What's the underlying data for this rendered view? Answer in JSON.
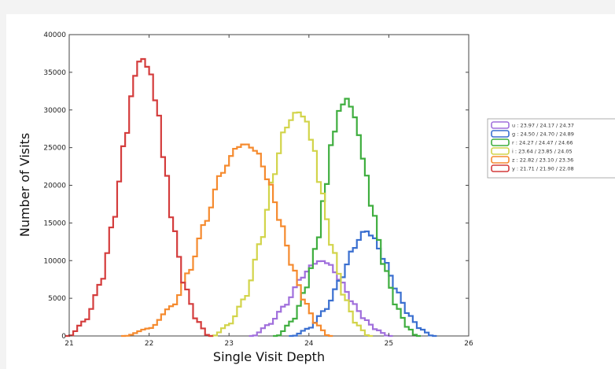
{
  "chart_data": {
    "type": "histogram",
    "xlabel": "Single Visit Depth",
    "ylabel": "Number of Visits",
    "xlim": [
      21,
      26
    ],
    "ylim": [
      0,
      40000
    ],
    "xticks": [
      "21",
      "22",
      "23",
      "24",
      "25",
      "26"
    ],
    "yticks": [
      "0",
      "5000",
      "10000",
      "15000",
      "20000",
      "25000",
      "30000",
      "35000",
      "40000"
    ],
    "grid": false,
    "legend_position": "right, outside plot",
    "series": [
      {
        "name": "u : 23.97 / 24.17 / 24.37",
        "color": "#a06fdc",
        "points": [
          [
            23.3,
            0
          ],
          [
            23.5,
            1500
          ],
          [
            23.7,
            4000
          ],
          [
            23.9,
            7600
          ],
          [
            24.05,
            9500
          ],
          [
            24.15,
            10000
          ],
          [
            24.25,
            9600
          ],
          [
            24.4,
            7300
          ],
          [
            24.55,
            4400
          ],
          [
            24.7,
            2200
          ],
          [
            24.85,
            800
          ],
          [
            25.0,
            0
          ]
        ]
      },
      {
        "name": "g : 24.50 / 24.70 / 24.89",
        "color": "#3a6fd0",
        "points": [
          [
            23.8,
            0
          ],
          [
            24.0,
            1000
          ],
          [
            24.2,
            3400
          ],
          [
            24.4,
            7500
          ],
          [
            24.55,
            11500
          ],
          [
            24.7,
            14000
          ],
          [
            24.8,
            13200
          ],
          [
            24.95,
            10000
          ],
          [
            25.1,
            6000
          ],
          [
            25.25,
            2800
          ],
          [
            25.4,
            900
          ],
          [
            25.55,
            0
          ]
        ]
      },
      {
        "name": "r : 24.27 / 24.47 / 24.66",
        "color": "#3fae3f",
        "points": [
          [
            23.6,
            0
          ],
          [
            23.8,
            2000
          ],
          [
            23.95,
            6000
          ],
          [
            24.1,
            12000
          ],
          [
            24.2,
            19000
          ],
          [
            24.3,
            26500
          ],
          [
            24.4,
            30500
          ],
          [
            24.48,
            31500
          ],
          [
            24.58,
            29000
          ],
          [
            24.68,
            23500
          ],
          [
            24.8,
            16500
          ],
          [
            24.95,
            9000
          ],
          [
            25.1,
            3800
          ],
          [
            25.25,
            1000
          ],
          [
            25.35,
            0
          ]
        ]
      },
      {
        "name": "i : 23.64 / 23.85 / 24.05",
        "color": "#d2d44a",
        "points": [
          [
            22.8,
            0
          ],
          [
            23.0,
            1500
          ],
          [
            23.2,
            5000
          ],
          [
            23.4,
            12500
          ],
          [
            23.55,
            21000
          ],
          [
            23.7,
            27500
          ],
          [
            23.85,
            29800
          ],
          [
            23.95,
            29000
          ],
          [
            24.05,
            25500
          ],
          [
            24.15,
            19500
          ],
          [
            24.3,
            11500
          ],
          [
            24.45,
            5000
          ],
          [
            24.6,
            1500
          ],
          [
            24.75,
            0
          ]
        ]
      },
      {
        "name": "z : 22.82 / 23.10 / 23.36",
        "color": "#f58a2e",
        "points": [
          [
            21.7,
            0
          ],
          [
            22.0,
            1000
          ],
          [
            22.3,
            4000
          ],
          [
            22.5,
            8500
          ],
          [
            22.7,
            15000
          ],
          [
            22.9,
            21500
          ],
          [
            23.1,
            25000
          ],
          [
            23.2,
            25500
          ],
          [
            23.35,
            24500
          ],
          [
            23.5,
            20500
          ],
          [
            23.65,
            15000
          ],
          [
            23.8,
            9000
          ],
          [
            23.95,
            4500
          ],
          [
            24.1,
            1500
          ],
          [
            24.25,
            0
          ]
        ]
      },
      {
        "name": "y : 21.71 / 21.90 / 22.08",
        "color": "#d43c3c",
        "points": [
          [
            21.0,
            0
          ],
          [
            21.2,
            2000
          ],
          [
            21.4,
            7000
          ],
          [
            21.55,
            15000
          ],
          [
            21.7,
            26000
          ],
          [
            21.82,
            34500
          ],
          [
            21.9,
            37000
          ],
          [
            22.0,
            35500
          ],
          [
            22.1,
            30500
          ],
          [
            22.2,
            22500
          ],
          [
            22.3,
            14500
          ],
          [
            22.45,
            6500
          ],
          [
            22.6,
            2000
          ],
          [
            22.75,
            0
          ]
        ]
      }
    ]
  }
}
